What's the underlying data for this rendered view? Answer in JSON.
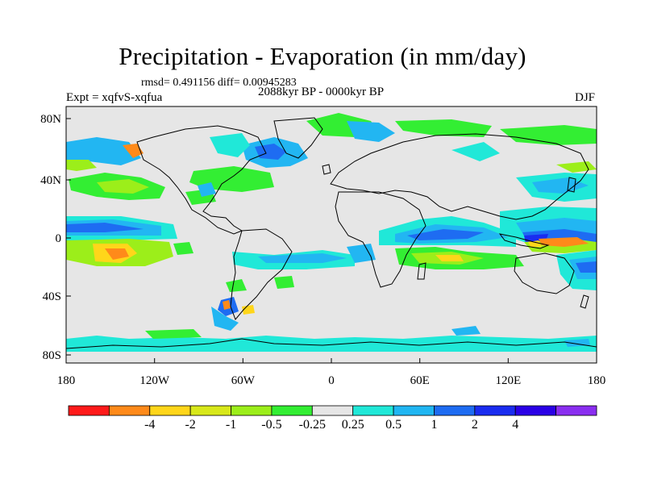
{
  "title": "Precipitation - Evaporation (in mm/day)",
  "stats_line": "rmsd= 0.491156 diff= 0.00945283",
  "subtitle": "2088kyr BP - 0000kyr BP",
  "experiment_label": "Expt = xqfvS-xqfua",
  "season": "DJF",
  "lat_ticks": [
    "80N",
    "40N",
    "0",
    "40S",
    "80S"
  ],
  "lon_ticks": [
    "180",
    "120W",
    "60W",
    "0",
    "60E",
    "120E",
    "180"
  ],
  "colorbar": {
    "colors": [
      "#ff1a1a",
      "#ff8a1a",
      "#ffd61a",
      "#d8e81a",
      "#9cee1a",
      "#33ee33",
      "#e6e6e6",
      "#20e8d8",
      "#20b6f2",
      "#1e6cf2",
      "#1a2cf0",
      "#2a00e6",
      "#8a2ef0"
    ],
    "labels": [
      "-4",
      "-2",
      "-1",
      "-0.5",
      "-0.25",
      "0.25",
      "0.5",
      "1",
      "2",
      "4"
    ]
  },
  "colors": {
    "land_outline": "#000000",
    "background_field": "#e6e6e6"
  }
}
